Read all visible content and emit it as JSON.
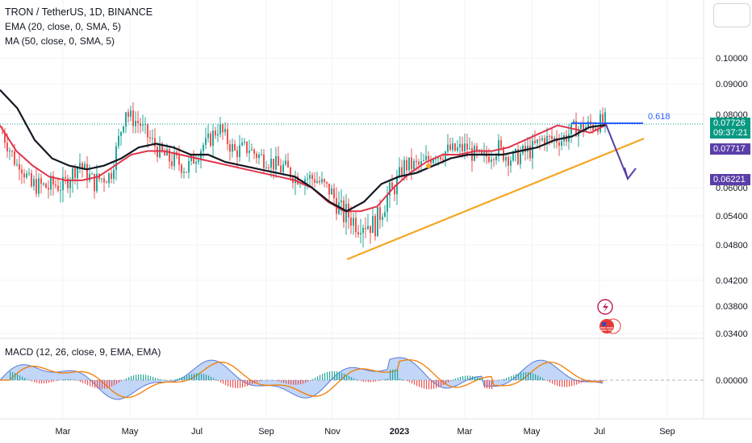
{
  "header": {
    "title": "TRON / TetherUS, 1D, BINANCE",
    "ema_label": "EMA (20, close, 0, SMA, 5)",
    "ma_label": "MA (50, close, 0, SMA, 5)",
    "macd_label": "MACD (12, 26, close, 9, EMA, EMA)"
  },
  "price_badges": {
    "current": "0.07726",
    "countdown": "09:37:21",
    "ma_value": "0.07717",
    "target": "0.06221"
  },
  "annotations": {
    "fib_label": "0.618"
  },
  "colors": {
    "up": "#26a69a",
    "down": "#ef5350",
    "ema": "#e0344b",
    "ma": "#131722",
    "trendline": "#f5a623",
    "fib_line": "#2962ff",
    "arrow": "#5b3fa8",
    "badge_green": "#089981",
    "badge_purple": "#5b3fa8",
    "macd_fill": "#90b4f0",
    "signal": "#f57c00"
  },
  "chart_data": {
    "type": "candlestick",
    "symbol": "TRON / TetherUS",
    "interval": "1D",
    "exchange": "BINANCE",
    "y_axis_ticks": [
      "0.10000",
      "0.09000",
      "0.08000",
      "0.06000",
      "0.05400",
      "0.04800",
      "0.04200",
      "0.03800",
      "0.03400"
    ],
    "x_axis_ticks": [
      "Mar",
      "May",
      "Jul",
      "Sep",
      "Nov",
      "2023",
      "Mar",
      "May",
      "Jul",
      "Sep"
    ],
    "macd_axis_ticks": [
      "0.00000"
    ],
    "price_path": [
      [
        0.075,
        0.07
      ],
      [
        0.068,
        0.064
      ],
      [
        0.061,
        0.059
      ],
      [
        0.061,
        0.06
      ],
      [
        0.061,
        0.063
      ],
      [
        0.066,
        0.064
      ],
      [
        0.062,
        0.061
      ],
      [
        0.064,
        0.069
      ],
      [
        0.08,
        0.082
      ],
      [
        0.076,
        0.077
      ],
      [
        0.07,
        0.068
      ],
      [
        0.068,
        0.065
      ],
      [
        0.066,
        0.068
      ],
      [
        0.071,
        0.073
      ],
      [
        0.076,
        0.075
      ],
      [
        0.07,
        0.072
      ],
      [
        0.07,
        0.069
      ],
      [
        0.068,
        0.066
      ],
      [
        0.066,
        0.065
      ],
      [
        0.063,
        0.062
      ],
      [
        0.063,
        0.062
      ],
      [
        0.06,
        0.058
      ],
      [
        0.055,
        0.053
      ],
      [
        0.053,
        0.053
      ],
      [
        0.052,
        0.055
      ],
      [
        0.058,
        0.06
      ],
      [
        0.066,
        0.066
      ],
      [
        0.066,
        0.068
      ],
      [
        0.069,
        0.07
      ],
      [
        0.07,
        0.072
      ],
      [
        0.07,
        0.069
      ],
      [
        0.068,
        0.07
      ],
      [
        0.07,
        0.069
      ],
      [
        0.068,
        0.069
      ],
      [
        0.07,
        0.072
      ],
      [
        0.073,
        0.074
      ],
      [
        0.073,
        0.074
      ],
      [
        0.076,
        0.076
      ],
      [
        0.077,
        0.078
      ],
      [
        0.078,
        0.077
      ]
    ],
    "ema_path": [
      [
        0.077,
        0.07
      ],
      [
        0.066,
        0.063
      ],
      [
        0.062,
        0.062
      ],
      [
        0.063,
        0.066
      ],
      [
        0.069,
        0.07
      ],
      [
        0.07,
        0.069
      ],
      [
        0.068,
        0.067
      ],
      [
        0.066,
        0.065
      ],
      [
        0.064,
        0.063
      ],
      [
        0.062,
        0.06
      ],
      [
        0.057,
        0.055
      ],
      [
        0.055,
        0.056
      ],
      [
        0.06,
        0.064
      ],
      [
        0.067,
        0.069
      ],
      [
        0.069,
        0.07
      ],
      [
        0.07,
        0.071
      ],
      [
        0.073,
        0.075
      ],
      [
        0.077,
        0.076
      ],
      [
        0.075,
        0.0772
      ]
    ],
    "ma_path": [
      [
        0.088,
        0.082
      ],
      [
        0.073,
        0.068
      ],
      [
        0.066,
        0.065
      ],
      [
        0.066,
        0.068
      ],
      [
        0.071,
        0.072
      ],
      [
        0.071,
        0.069
      ],
      [
        0.069,
        0.067
      ],
      [
        0.066,
        0.065
      ],
      [
        0.064,
        0.063
      ],
      [
        0.06,
        0.057
      ],
      [
        0.055,
        0.057
      ],
      [
        0.061,
        0.063
      ],
      [
        0.064,
        0.066
      ],
      [
        0.068,
        0.069
      ],
      [
        0.069,
        0.069
      ],
      [
        0.07,
        0.071
      ],
      [
        0.073,
        0.074
      ],
      [
        0.0765,
        0.07717
      ]
    ]
  }
}
